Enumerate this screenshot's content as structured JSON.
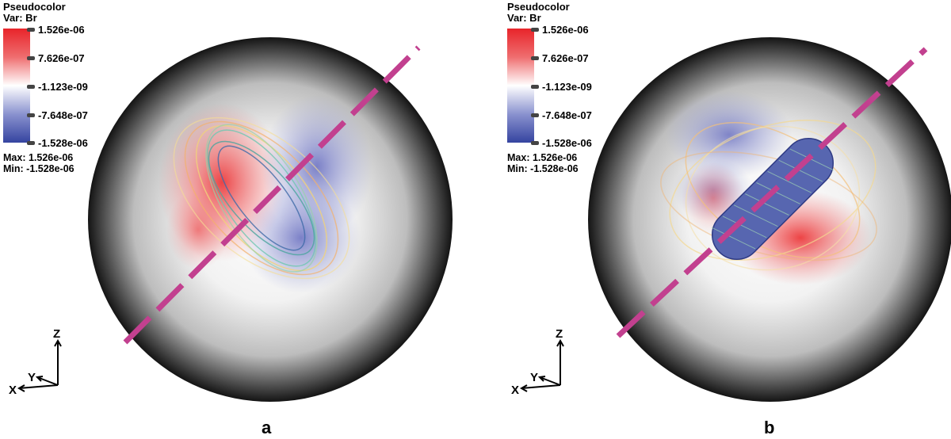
{
  "legend": {
    "title": "Pseudocolor",
    "var": "Var: Br",
    "ticks": [
      "1.526e-06",
      "7.626e-07",
      "-1.123e-09",
      "-7.648e-07",
      "-1.528e-06"
    ],
    "max": "Max: 1.526e-06",
    "min": "Min: -1.528e-06"
  },
  "axes": {
    "z": "Z",
    "y": "Y",
    "x": "X"
  },
  "panels": {
    "a": "a",
    "b": "b"
  },
  "colors": {
    "positive": "#e8242a",
    "neutral": "#ffffff",
    "negative": "#3544a0",
    "axis_line": "#c2408f"
  }
}
